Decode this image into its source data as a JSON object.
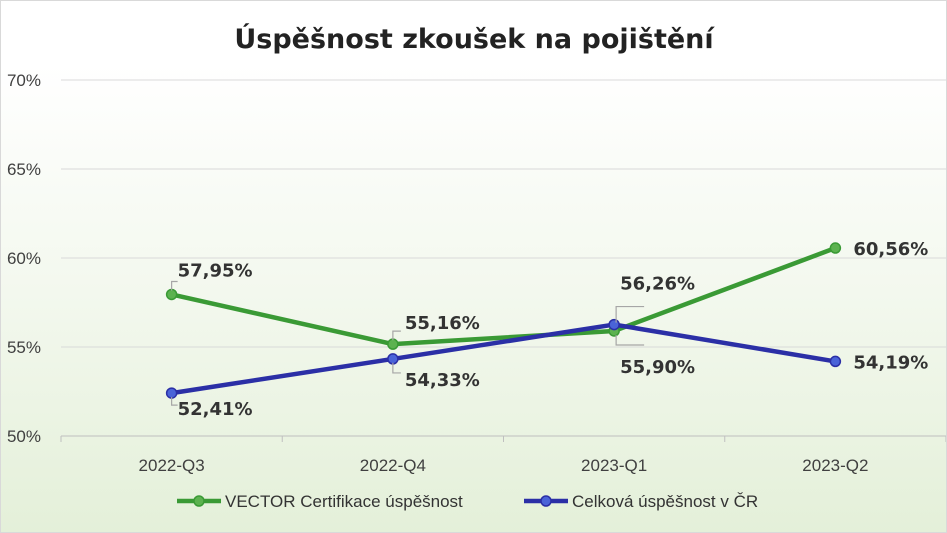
{
  "chart_data": {
    "type": "line",
    "title": "Úspěšnost zkoušek na pojištění",
    "categories": [
      "2022-Q3",
      "2022-Q4",
      "2023-Q1",
      "2023-Q2"
    ],
    "ylim": [
      50,
      70
    ],
    "yticks": [
      50,
      55,
      60,
      65,
      70
    ],
    "ytick_labels": [
      "50%",
      "55%",
      "60%",
      "65%",
      "70%"
    ],
    "grid": true,
    "legend_position": "bottom",
    "series": [
      {
        "name": "VECTOR Certifikace úspěšnost",
        "color": "#3a9a35",
        "values": [
          57.95,
          55.16,
          55.9,
          60.56
        ],
        "labels": [
          "57,95%",
          "55,16%",
          "55,90%",
          "60,56%"
        ]
      },
      {
        "name": "Celková úspěšnost v ČR",
        "color": "#2b2fa6",
        "values": [
          52.41,
          54.33,
          56.26,
          54.19
        ],
        "labels": [
          "52,41%",
          "54,33%",
          "56,26%",
          "54,19%"
        ]
      }
    ]
  }
}
